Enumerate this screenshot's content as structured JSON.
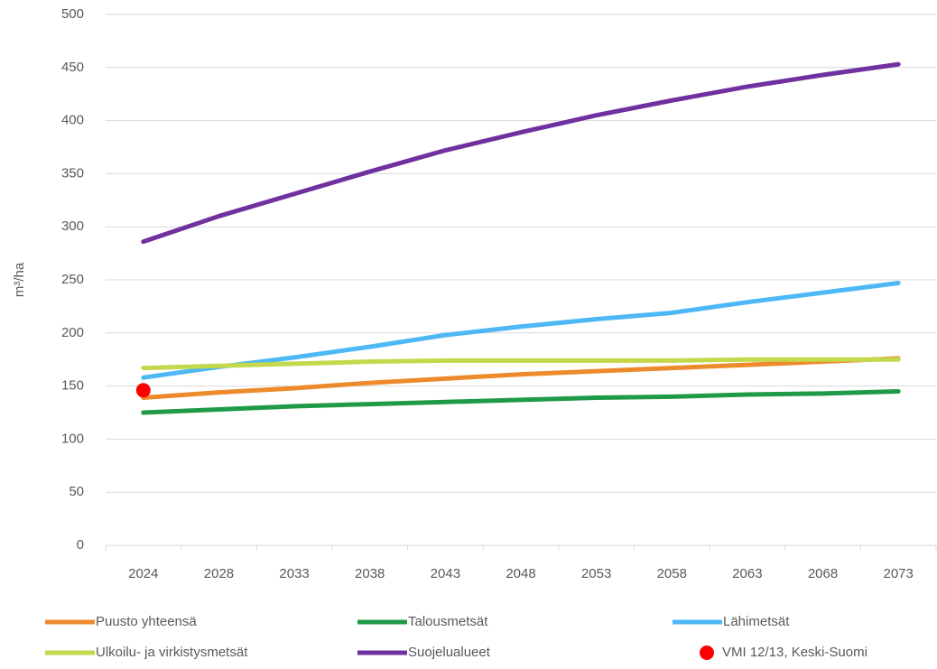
{
  "chart_data": {
    "type": "line",
    "y_label": "m³/ha",
    "categories": [
      "2024",
      "2028",
      "2033",
      "2038",
      "2043",
      "2048",
      "2053",
      "2058",
      "2063",
      "2068",
      "2073"
    ],
    "series": [
      {
        "name": "Puusto yhteensä",
        "color": "#ed8a2c",
        "values": [
          139,
          144,
          148,
          153,
          157,
          161,
          164,
          167,
          170,
          173,
          176
        ]
      },
      {
        "name": "Talousmetsät",
        "color": "#1f9a47",
        "values": [
          125,
          128,
          131,
          133,
          135,
          137,
          139,
          140,
          142,
          143,
          145
        ]
      },
      {
        "name": "Lähimetsät",
        "color": "#4db8f5",
        "values": [
          158,
          168,
          177,
          187,
          198,
          206,
          213,
          219,
          229,
          238,
          247
        ]
      },
      {
        "name": "Ulkoilu- ja virkistysmetsät",
        "color": "#c3d94b",
        "values": [
          167,
          169,
          171,
          173,
          174,
          174,
          174,
          174,
          175,
          175,
          175
        ]
      },
      {
        "name": "Suojelualueet",
        "color": "#7030a0",
        "values": [
          286,
          310,
          331,
          352,
          372,
          389,
          405,
          419,
          432,
          443,
          453
        ]
      },
      {
        "name": "VMI 12/13, Keski-Suomi",
        "color": "#ff0000",
        "marker": true,
        "values": [
          146,
          null,
          null,
          null,
          null,
          null,
          null,
          null,
          null,
          null,
          null
        ]
      }
    ],
    "ylim": [
      0,
      500
    ],
    "yticks": [
      0,
      50,
      100,
      150,
      200,
      250,
      300,
      350,
      400,
      450,
      500
    ],
    "grid": true
  }
}
